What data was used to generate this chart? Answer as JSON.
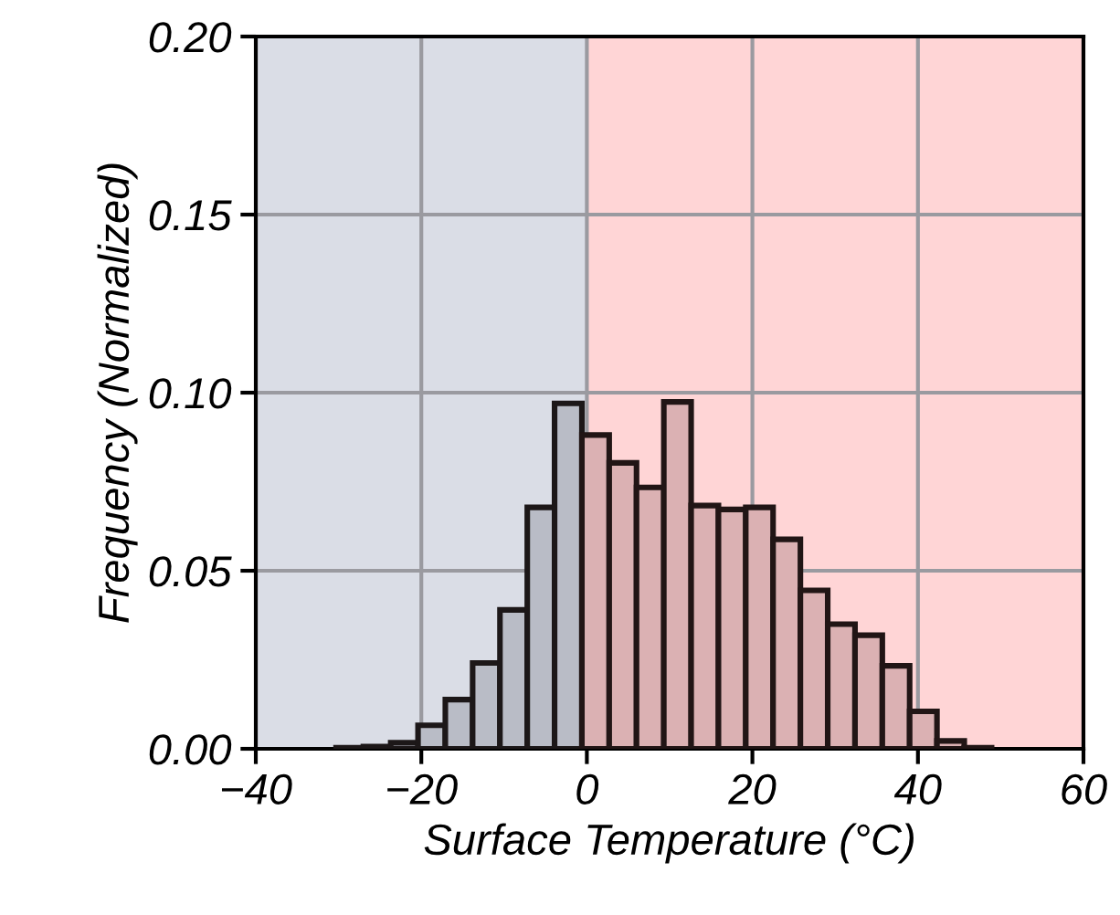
{
  "chart_data": {
    "type": "histogram",
    "xlabel": "Surface Temperature (°C)",
    "ylabel": "Frequency (Normalized)",
    "bins": [
      -30.3,
      -27.0,
      -23.7,
      -20.4,
      -17.1,
      -13.8,
      -10.5,
      -7.2,
      -3.9,
      -0.6,
      2.7,
      6.0,
      9.3,
      12.6,
      15.9,
      19.2,
      22.5,
      25.8,
      29.1,
      32.4,
      35.7,
      39.0,
      42.3,
      45.6,
      48.9
    ],
    "values": [
      0.0003,
      0.0006,
      0.0017,
      0.0066,
      0.0138,
      0.0241,
      0.039,
      0.0678,
      0.097,
      0.0881,
      0.0803,
      0.0734,
      0.0974,
      0.0683,
      0.0672,
      0.0678,
      0.0588,
      0.0445,
      0.035,
      0.0319,
      0.0233,
      0.0105,
      0.0022,
      0.0003
    ],
    "colors": [
      "#b9bcc6",
      "#b9bcc6",
      "#b9bcc6",
      "#b9bcc6",
      "#b9bcc6",
      "#b9bcc6",
      "#b9bcc6",
      "#b9bcc6",
      "#b9bcc6",
      "#dbb1b3",
      "#dbb1b3",
      "#dbb1b3",
      "#dbb1b3",
      "#dbb1b3",
      "#dbb1b3",
      "#dbb1b3",
      "#dbb1b3",
      "#dbb1b3",
      "#dbb1b3",
      "#dbb1b3",
      "#dbb1b3",
      "#dbb1b3",
      "#dbb1b3",
      "#dbb1b3"
    ],
    "bands": [
      {
        "axis": "x",
        "from": -40,
        "to": 0,
        "color": "#dadde6"
      },
      {
        "axis": "x",
        "from": 0,
        "to": 60,
        "color": "#ffd5d6"
      }
    ],
    "xlim": [
      -40,
      60
    ],
    "xticks": [
      {
        "value": -40,
        "label": "−40"
      },
      {
        "value": -20,
        "label": "−20"
      },
      0,
      20,
      40,
      60
    ],
    "ylim": [
      0,
      0.2
    ],
    "yticks": [
      {
        "value": 0,
        "label": "0.00"
      },
      {
        "value": 0.05,
        "label": "0.05"
      },
      {
        "value": 0.1,
        "label": "0.10"
      },
      {
        "value": 0.15,
        "label": "0.15"
      },
      {
        "value": 0.2,
        "label": "0.20"
      }
    ],
    "grid": true
  }
}
